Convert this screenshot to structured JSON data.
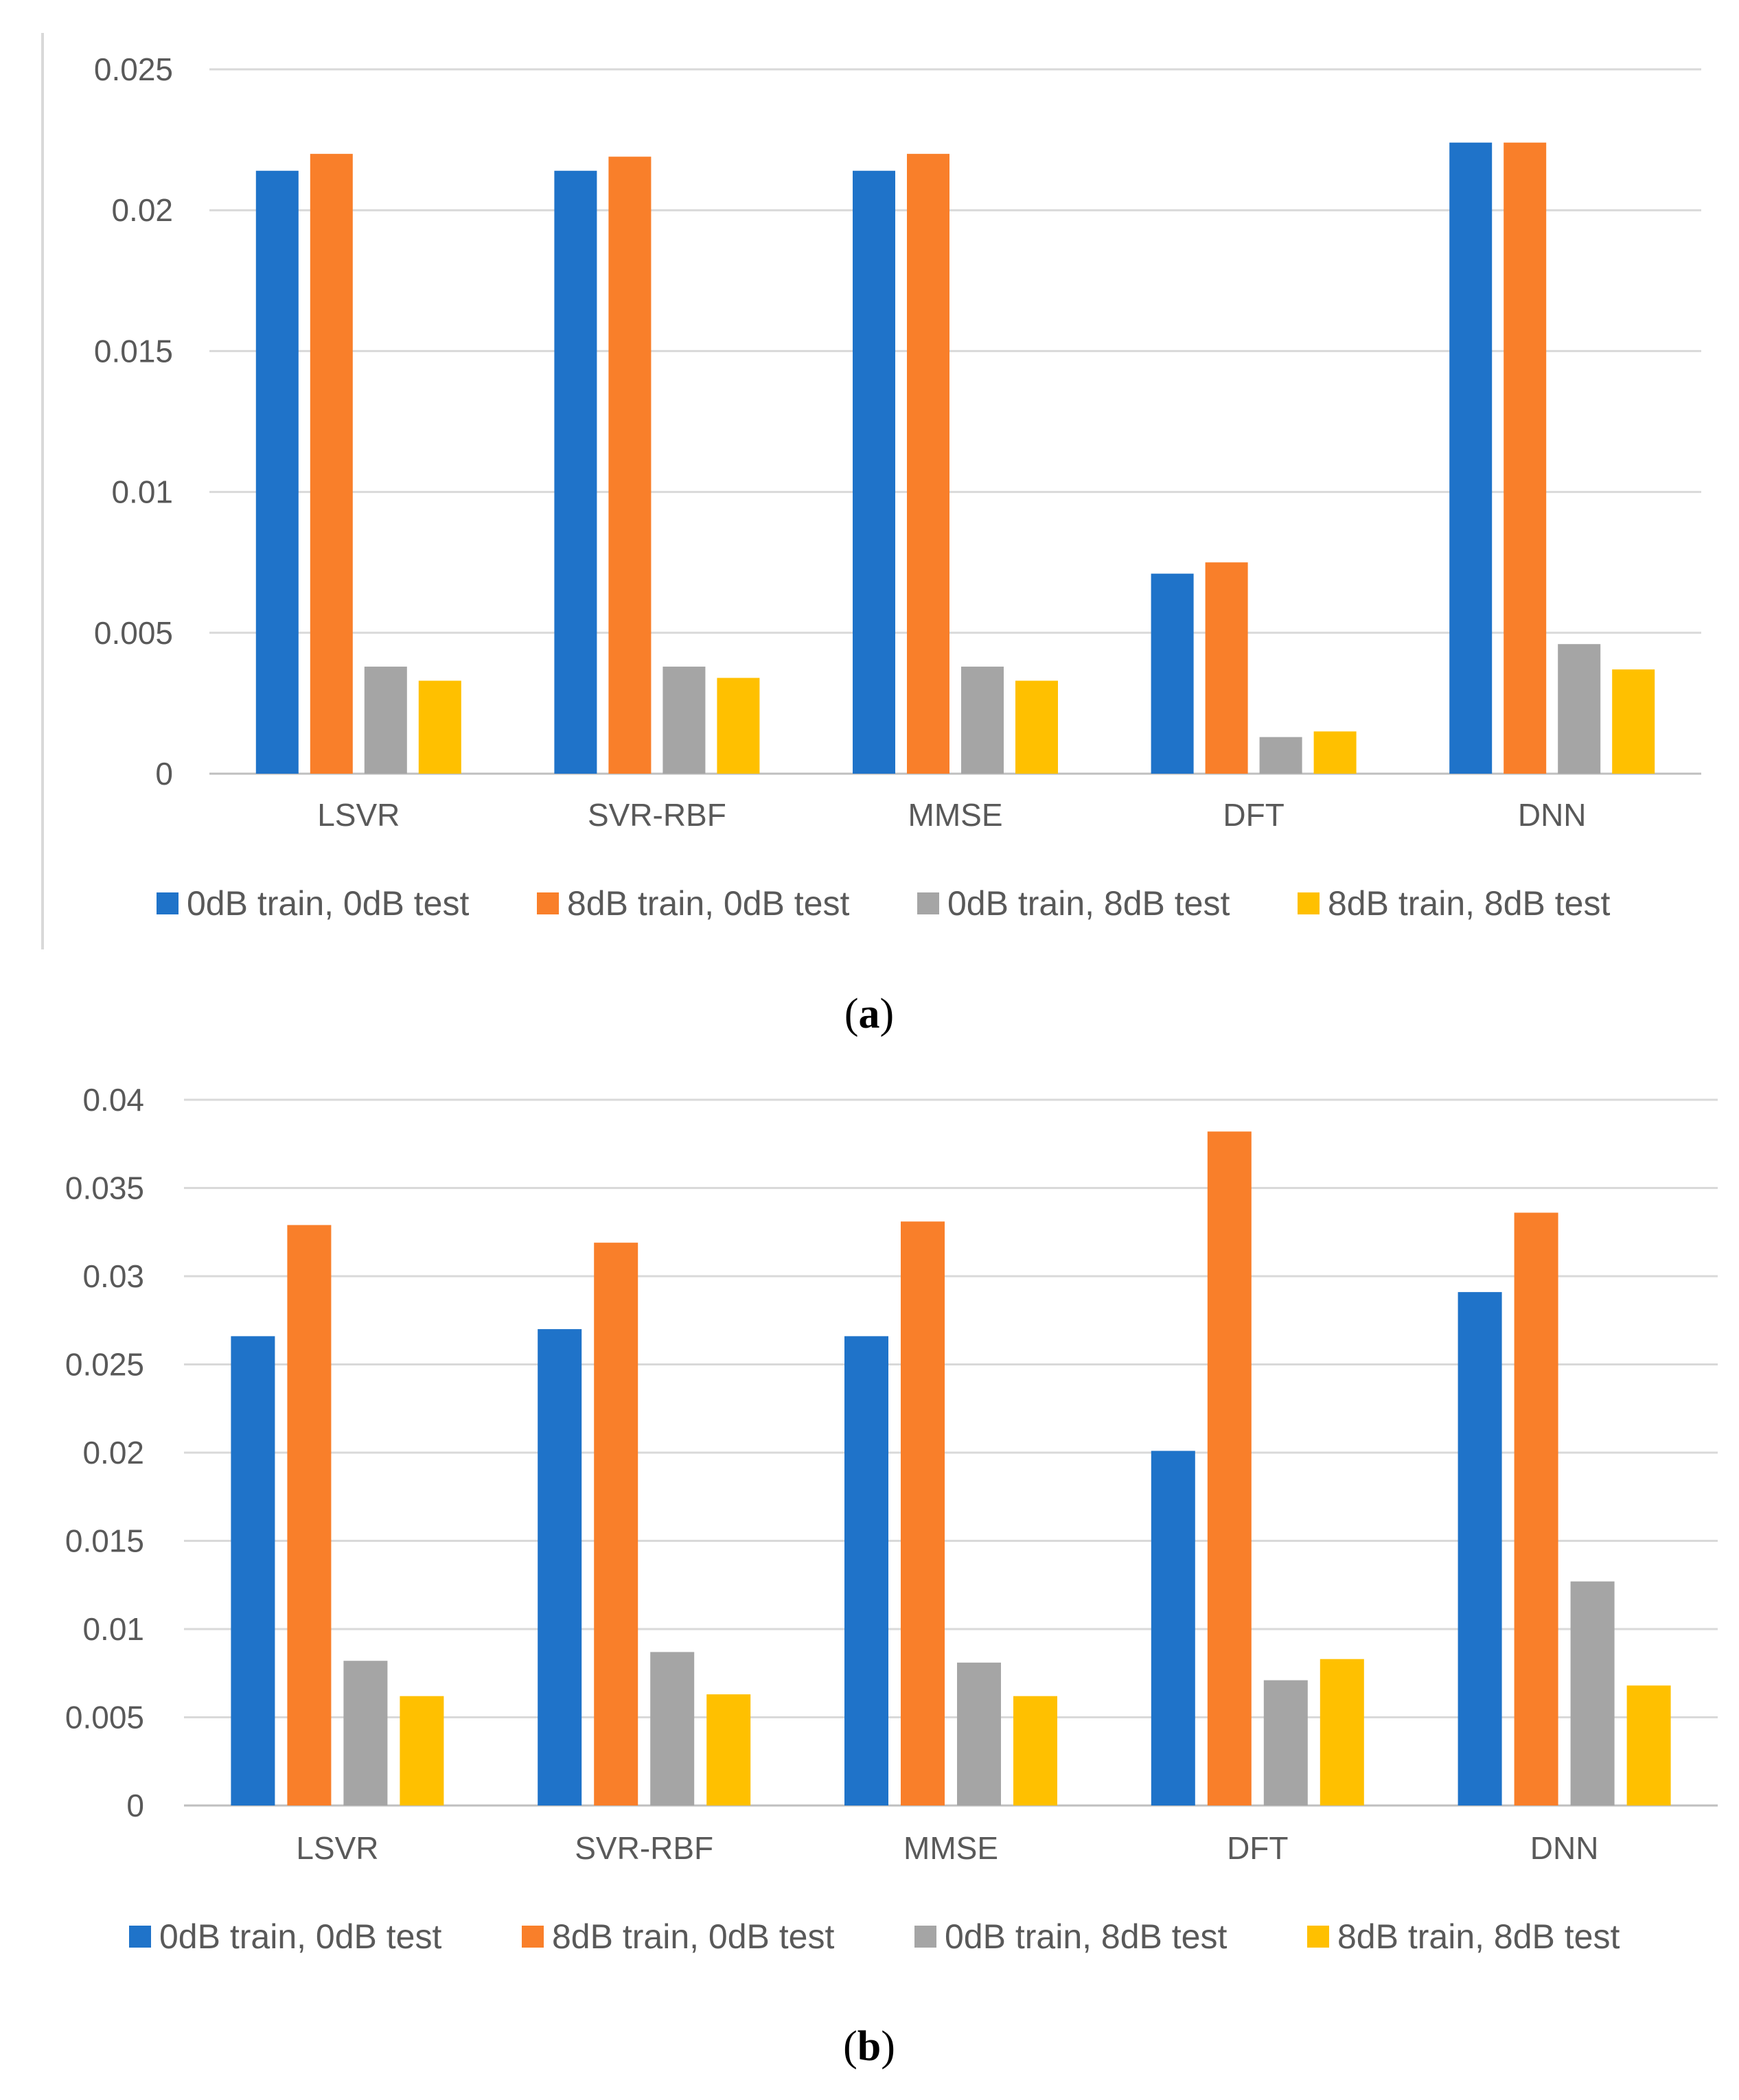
{
  "colors": {
    "0dB train, 0dB test": "#1f73c9",
    "8dB train, 0dB test": "#f97f2a",
    "0dB train, 8dB test": "#a5a5a5",
    "8dB train, 8dB test": "#ffc000"
  },
  "chart_data": [
    {
      "type": "bar",
      "panel_label": "a",
      "title": "",
      "xlabel": "",
      "ylabel": "",
      "ylim": [
        0,
        0.025
      ],
      "yticks": [
        "0",
        "0.005",
        "0.01",
        "0.015",
        "0.02",
        "0.025"
      ],
      "grid": true,
      "legend_position": "bottom",
      "categories": [
        "LSVR",
        "SVR-RBF",
        "MMSE",
        "DFT",
        "DNN"
      ],
      "series": [
        {
          "name": "0dB train, 0dB test",
          "values": [
            0.0214,
            0.0214,
            0.0214,
            0.0071,
            0.0224
          ]
        },
        {
          "name": "8dB train, 0dB test",
          "values": [
            0.022,
            0.0219,
            0.022,
            0.0075,
            0.0224
          ]
        },
        {
          "name": "0dB train, 8dB test",
          "values": [
            0.0038,
            0.0038,
            0.0038,
            0.0013,
            0.0046
          ]
        },
        {
          "name": "8dB train, 8dB test",
          "values": [
            0.0033,
            0.0034,
            0.0033,
            0.0015,
            0.0037
          ]
        }
      ]
    },
    {
      "type": "bar",
      "panel_label": "b",
      "title": "",
      "xlabel": "",
      "ylabel": "",
      "ylim": [
        0,
        0.04
      ],
      "yticks": [
        "0",
        "0.005",
        "0.01",
        "0.015",
        "0.02",
        "0.025",
        "0.03",
        "0.035",
        "0.04"
      ],
      "grid": true,
      "legend_position": "bottom",
      "categories": [
        "LSVR",
        "SVR-RBF",
        "MMSE",
        "DFT",
        "DNN"
      ],
      "series": [
        {
          "name": "0dB train, 0dB test",
          "values": [
            0.0266,
            0.027,
            0.0266,
            0.0201,
            0.0291
          ]
        },
        {
          "name": "8dB train, 0dB test",
          "values": [
            0.0329,
            0.0319,
            0.0331,
            0.0382,
            0.0336
          ]
        },
        {
          "name": "0dB train, 8dB test",
          "values": [
            0.0082,
            0.0087,
            0.0081,
            0.0071,
            0.0127
          ]
        },
        {
          "name": "8dB train, 8dB test",
          "values": [
            0.0062,
            0.0063,
            0.0062,
            0.0083,
            0.0068
          ]
        }
      ]
    }
  ]
}
